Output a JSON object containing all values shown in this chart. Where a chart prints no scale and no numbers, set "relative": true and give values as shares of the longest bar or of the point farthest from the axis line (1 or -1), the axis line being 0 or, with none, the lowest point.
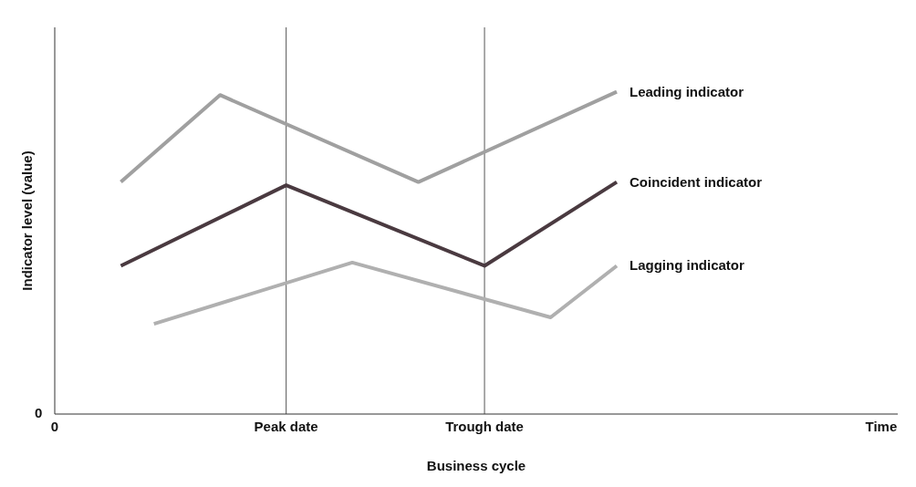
{
  "chart_data": {
    "type": "line",
    "relative": true,
    "xlabel": "Business cycle",
    "ylabel": "Indicator level (value)",
    "annotations": [
      "0"
    ],
    "categories": [
      "0",
      null,
      null,
      null,
      null,
      null,
      null,
      "Peak date",
      null,
      null,
      null,
      null,
      null,
      "Trough date",
      null,
      null,
      null,
      null,
      null,
      null,
      null,
      null,
      null,
      null,
      null,
      "Time"
    ],
    "ref_lines": [
      {
        "axis": "x",
        "value": "Peak date",
        "color": "#555555"
      },
      {
        "axis": "x",
        "value": "Trough date",
        "color": "#555555"
      }
    ],
    "grid": false,
    "legend": false,
    "marker": "none",
    "line_style": "solid",
    "series": [
      {
        "name": "Leading indicator",
        "color": "#a0a0a0",
        "values": [
          null,
          null,
          0.72,
          null,
          null,
          0.99,
          null,
          null,
          null,
          null,
          null,
          0.72,
          null,
          null,
          null,
          null,
          null,
          1,
          null,
          null,
          null,
          null,
          null,
          null,
          null,
          null
        ]
      },
      {
        "name": "Coincident indicator",
        "color": "#4a3a40",
        "values": [
          null,
          null,
          0.46,
          null,
          null,
          null,
          null,
          0.71,
          null,
          null,
          null,
          null,
          null,
          0.46,
          null,
          null,
          null,
          0.72,
          null,
          null,
          null,
          null,
          null,
          null,
          null,
          null
        ]
      },
      {
        "name": "Lagging indicator",
        "color": "#b0b0b0",
        "values": [
          null,
          null,
          null,
          0.28,
          null,
          null,
          null,
          null,
          null,
          0.47,
          null,
          null,
          null,
          null,
          null,
          0.3,
          null,
          0.46,
          null,
          null,
          null,
          null,
          null,
          null,
          null,
          null
        ]
      }
    ]
  }
}
